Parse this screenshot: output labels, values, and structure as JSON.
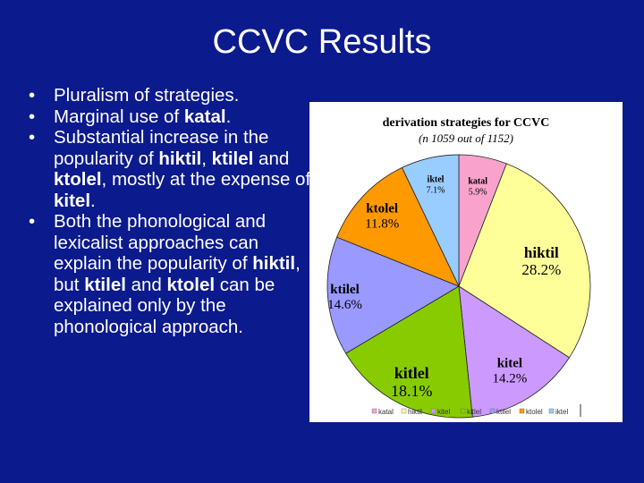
{
  "slide": {
    "title": "CCVC Results",
    "bullet_char": "•",
    "bullets": [
      [
        "Pluralism of strategies."
      ],
      [
        "Marginal use of ",
        "katal",
        "."
      ],
      [
        "Substantial increase in the popularity of ",
        "hiktil",
        ", ",
        "ktilel",
        " and ",
        "ktolel",
        ", mostly at the expense of ",
        "kitel",
        "."
      ],
      [
        "Both the phonological and lexicalist approaches can explain the popularity of ",
        "hiktil",
        ", but ",
        "ktilel",
        " and ",
        "ktolel",
        " can be explained only by the phonological approach."
      ]
    ]
  },
  "chart_data": {
    "type": "pie",
    "title": "derivation strategies for CCVC",
    "subtitle": "(n 1059 out of 1152)",
    "slices": [
      {
        "label": "katal",
        "value": 5.9,
        "display": "5.9%",
        "color": "#f9a3cc"
      },
      {
        "label": "hiktil",
        "value": 28.2,
        "display": "28.2%",
        "color": "#ffff99"
      },
      {
        "label": "kitel",
        "value": 14.2,
        "display": "14.2%",
        "color": "#cc99ff"
      },
      {
        "label": "kitlel",
        "value": 18.1,
        "display": "18.1%",
        "color": "#88cc00"
      },
      {
        "label": "ktilel",
        "value": 14.6,
        "display": "14.6%",
        "color": "#9999ff"
      },
      {
        "label": "ktolel",
        "value": 11.8,
        "display": "11.8%",
        "color": "#ff9900"
      },
      {
        "label": "iktel",
        "value": 7.1,
        "display": "7.1%",
        "color": "#99ccff"
      }
    ],
    "legend": {
      "position": "bottom",
      "entries": [
        "katal",
        "hiktil",
        "kitel",
        "kitlel",
        "ktilel",
        "ktolel",
        "iktel"
      ]
    }
  }
}
